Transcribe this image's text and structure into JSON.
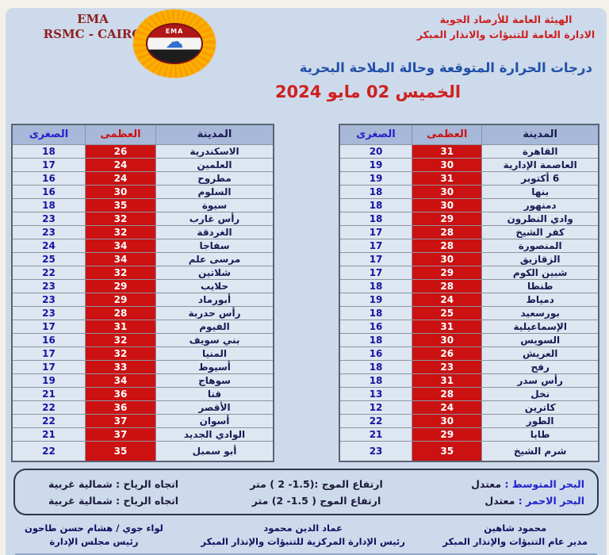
{
  "header": {
    "org_en_line1": "EMA",
    "org_en_line2": "RSMC - CAIRO",
    "org_ar_line1": "الهيئة العامة للأرصاد الجوية",
    "org_ar_line2": "الادارة العامة للتنبؤات والانذار المبكر",
    "logo_text": "EMA",
    "logo_cloud_icon": "cloud",
    "title": "درجات الحرارة المتوقعة وحالة الملاحة البحرية",
    "date": "الخميس 02 مايو 2024"
  },
  "table_headers": {
    "city": "المدينة",
    "max": "العظمى",
    "min": "الصغرى"
  },
  "left_table": {
    "rows": [
      {
        "city": "الاسكندرية",
        "max": "26",
        "min": "18"
      },
      {
        "city": "العلمين",
        "max": "24",
        "min": "17"
      },
      {
        "city": "مطروح",
        "max": "24",
        "min": "16"
      },
      {
        "city": "السلوم",
        "max": "30",
        "min": "16"
      },
      {
        "city": "سيوة",
        "max": "35",
        "min": "18"
      },
      {
        "city": "رأس غارب",
        "max": "32",
        "min": "23"
      },
      {
        "city": "الغردقة",
        "max": "32",
        "min": "23"
      },
      {
        "city": "سفاجا",
        "max": "34",
        "min": "24"
      },
      {
        "city": "مرسى علم",
        "max": "34",
        "min": "25"
      },
      {
        "city": "شلاتين",
        "max": "32",
        "min": "22"
      },
      {
        "city": "حلايب",
        "max": "29",
        "min": "23"
      },
      {
        "city": "أبورماد",
        "max": "29",
        "min": "23"
      },
      {
        "city": "رأس حدربة",
        "max": "28",
        "min": "23"
      },
      {
        "city": "الفيوم",
        "max": "31",
        "min": "17"
      },
      {
        "city": "بني سويف",
        "max": "32",
        "min": "16"
      },
      {
        "city": "المنيا",
        "max": "32",
        "min": "17"
      },
      {
        "city": "أسيوط",
        "max": "33",
        "min": "17"
      },
      {
        "city": "سوهاج",
        "max": "34",
        "min": "19"
      },
      {
        "city": "قنا",
        "max": "36",
        "min": "21"
      },
      {
        "city": "الأقصر",
        "max": "36",
        "min": "22"
      },
      {
        "city": "أسوان",
        "max": "37",
        "min": "22"
      },
      {
        "city": "الوادي الجديد",
        "max": "37",
        "min": "21"
      },
      {
        "city": "أبو سمبل",
        "max": "35",
        "min": "22"
      }
    ]
  },
  "right_table": {
    "rows": [
      {
        "city": "القاهرة",
        "max": "31",
        "min": "20"
      },
      {
        "city": "العاصمة الإدارية",
        "max": "30",
        "min": "19"
      },
      {
        "city": "6 أكتوبر",
        "max": "31",
        "min": "19"
      },
      {
        "city": "بنها",
        "max": "30",
        "min": "18"
      },
      {
        "city": "دمنهور",
        "max": "30",
        "min": "18"
      },
      {
        "city": "وادي النطرون",
        "max": "29",
        "min": "18"
      },
      {
        "city": "كفر الشيخ",
        "max": "28",
        "min": "17"
      },
      {
        "city": "المنصورة",
        "max": "28",
        "min": "17"
      },
      {
        "city": "الزقازيق",
        "max": "30",
        "min": "17"
      },
      {
        "city": "شبين الكوم",
        "max": "29",
        "min": "17"
      },
      {
        "city": "طنطا",
        "max": "28",
        "min": "18"
      },
      {
        "city": "دمياط",
        "max": "24",
        "min": "19"
      },
      {
        "city": "بورسعيد",
        "max": "25",
        "min": "18"
      },
      {
        "city": "الإسماعيلية",
        "max": "31",
        "min": "16"
      },
      {
        "city": "السويس",
        "max": "30",
        "min": "18"
      },
      {
        "city": "العريش",
        "max": "26",
        "min": "16"
      },
      {
        "city": "رفح",
        "max": "23",
        "min": "18"
      },
      {
        "city": "رأس سدر",
        "max": "31",
        "min": "18"
      },
      {
        "city": "نخل",
        "max": "28",
        "min": "13"
      },
      {
        "city": "كاترين",
        "max": "24",
        "min": "12"
      },
      {
        "city": "الطور",
        "max": "30",
        "min": "22"
      },
      {
        "city": "طابا",
        "max": "29",
        "min": "21"
      },
      {
        "city": "شرم الشيخ",
        "max": "35",
        "min": "23"
      }
    ]
  },
  "marine": {
    "rows": [
      {
        "sea": "البحر المتوسط :",
        "state": "معتدل",
        "wave": "ارتفاع الموج :(1.5- 2 ) متر",
        "wind": "اتجاه الرياح : شمالية غربية"
      },
      {
        "sea": "البحر الاحمر :",
        "state": "معتدل",
        "wave": "ارتفاع الموج ( 1.5- 2) متر",
        "wind": "اتجاه الرياح : شمالية غربية"
      }
    ]
  },
  "footer": {
    "signatures": [
      {
        "name": "محمود شاهين",
        "title": "مدير عام التنبؤات والإنذار المبكر"
      },
      {
        "name": "عماد الدين محمود",
        "title": "رئيس الإدارة المركزية للتنبؤات والإنذار المبكر"
      },
      {
        "name": "لواء جوي / هشام حسن طاحون",
        "title": "رئيس مجلس الإدارة"
      }
    ]
  },
  "colors": {
    "panel_bg": "#cddaeb",
    "max_cell_bg": "#cb1111",
    "header_row_bg": "#a7b8d8",
    "title_blue": "#2150a8",
    "date_red": "#d02020",
    "maroon": "#8e1f1f"
  }
}
